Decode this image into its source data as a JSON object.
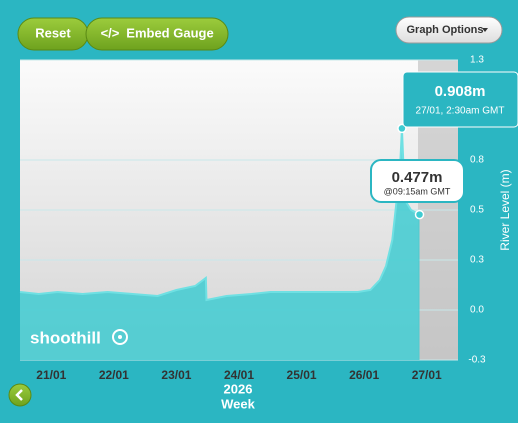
{
  "buttons": {
    "reset": "Reset",
    "embed": "Embed Gauge",
    "options": "Graph Options"
  },
  "logo": "shoothill",
  "chart_data": {
    "type": "area",
    "y_label": "River Level (m)",
    "x_label": "2026",
    "x_sublabel": "Week",
    "xlim": [
      21,
      28
    ],
    "xticks": [
      {
        "value": 21.5,
        "label": "21/01"
      },
      {
        "value": 22.5,
        "label": "22/01"
      },
      {
        "value": 23.5,
        "label": "23/01"
      },
      {
        "value": 24.5,
        "label": "24/01"
      },
      {
        "value": 25.5,
        "label": "25/01"
      },
      {
        "value": 26.5,
        "label": "26/01"
      },
      {
        "value": 27.5,
        "label": "27/01"
      }
    ],
    "ylim": [
      -0.25,
      1.25
    ],
    "yticks": [
      {
        "value": 1.25,
        "label": "1.3"
      },
      {
        "value": 0.75,
        "label": "0.8"
      },
      {
        "value": 0.5,
        "label": "0.5"
      },
      {
        "value": 0.25,
        "label": "0.3"
      },
      {
        "value": 0,
        "label": "0.0"
      },
      {
        "value": -0.25,
        "label": "-0.3"
      }
    ],
    "grid": true,
    "series": [
      {
        "color": "#3fcbd1",
        "x": [
          21,
          21.3,
          21.6,
          22,
          22.4,
          22.8,
          23.2,
          23.5,
          23.8,
          23.97,
          23.98,
          24.3,
          24.7,
          25,
          25.5,
          26,
          26.4,
          26.6,
          26.75,
          26.85,
          26.95,
          27.02,
          27.08,
          27.104,
          27.15,
          27.25,
          27.385
        ],
        "values": [
          0.09,
          0.08,
          0.09,
          0.08,
          0.09,
          0.08,
          0.07,
          0.1,
          0.12,
          0.16,
          0.05,
          0.07,
          0.08,
          0.09,
          0.09,
          0.09,
          0.09,
          0.1,
          0.15,
          0.22,
          0.35,
          0.55,
          0.75,
          0.908,
          0.55,
          0.5,
          0.477
        ]
      }
    ],
    "annotations": [
      {
        "value": "0.908m",
        "time": "27/01, 2:30am GMT"
      },
      {
        "value": "0.477m",
        "time": "@09:15am GMT"
      }
    ]
  }
}
